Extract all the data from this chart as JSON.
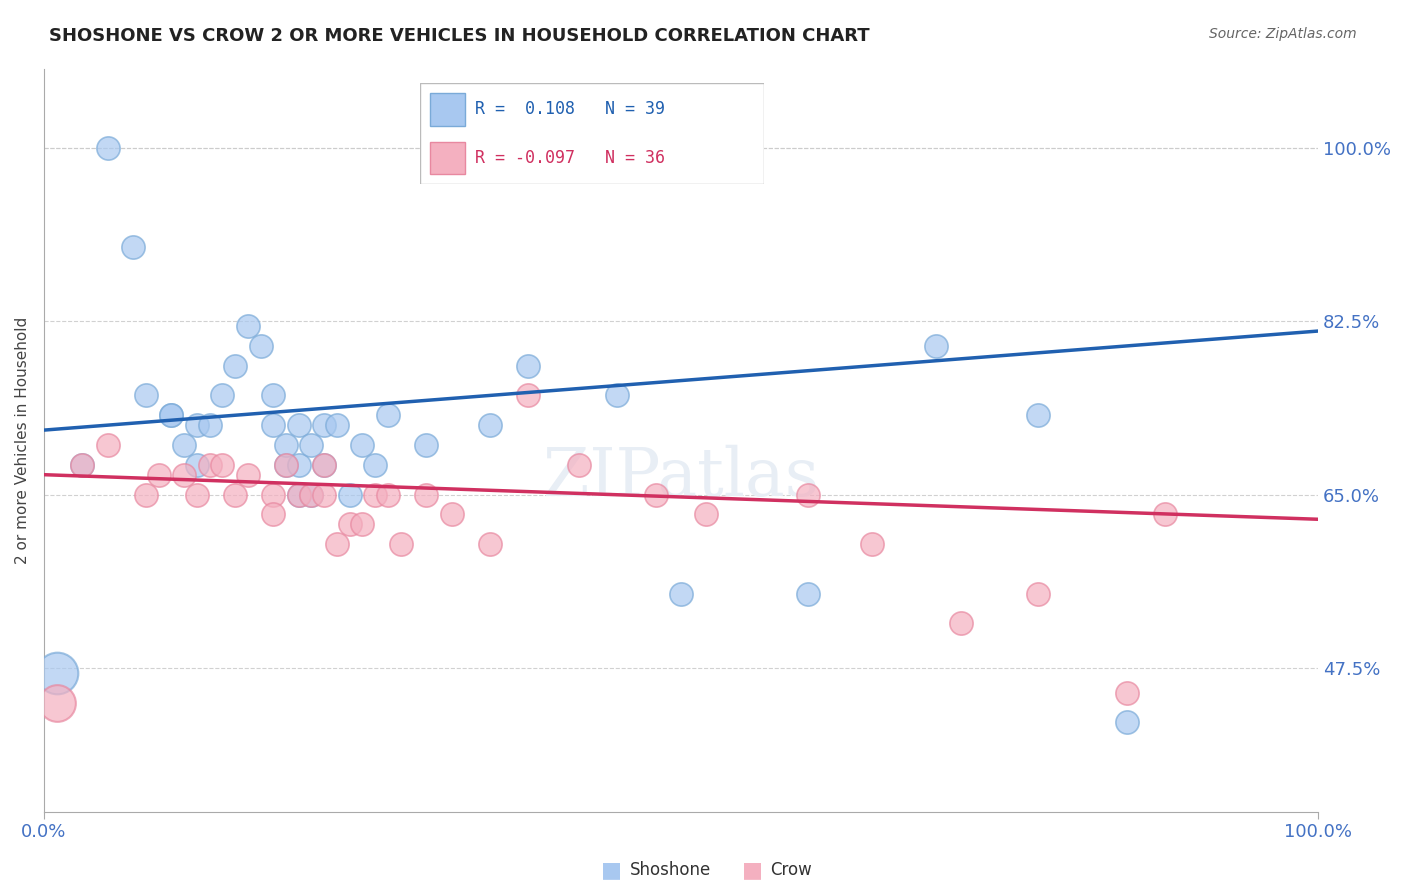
{
  "title": "SHOSHONE VS CROW 2 OR MORE VEHICLES IN HOUSEHOLD CORRELATION CHART",
  "source": "Source: ZipAtlas.com",
  "ylabel": "2 or more Vehicles in Household",
  "xlim": [
    0.0,
    100.0
  ],
  "ylim": [
    33.0,
    108.0
  ],
  "ytick_vals": [
    47.5,
    65.0,
    82.5,
    100.0
  ],
  "xtick_vals": [
    0.0,
    100.0
  ],
  "shoshone_color": "#A8C8F0",
  "shoshone_edge": "#7AAAD8",
  "crow_color": "#F4B0C0",
  "crow_edge": "#E888A0",
  "shoshone_line_color": "#2060B0",
  "crow_line_color": "#D03060",
  "R_shoshone": 0.108,
  "N_shoshone": 39,
  "R_crow": -0.097,
  "N_crow": 36,
  "shoshone_x": [
    3,
    5,
    7,
    8,
    10,
    10,
    11,
    12,
    12,
    13,
    14,
    15,
    16,
    17,
    18,
    18,
    19,
    19,
    20,
    20,
    20,
    21,
    21,
    22,
    22,
    23,
    24,
    25,
    26,
    27,
    30,
    35,
    38,
    45,
    50,
    60,
    70,
    78,
    85
  ],
  "shoshone_y": [
    68,
    100,
    90,
    75,
    73,
    73,
    70,
    68,
    72,
    72,
    75,
    78,
    82,
    80,
    75,
    72,
    68,
    70,
    65,
    68,
    72,
    65,
    70,
    68,
    72,
    72,
    65,
    70,
    68,
    73,
    70,
    72,
    78,
    75,
    55,
    55,
    80,
    73,
    42
  ],
  "crow_x": [
    3,
    5,
    8,
    9,
    11,
    12,
    13,
    14,
    15,
    16,
    18,
    18,
    19,
    20,
    21,
    22,
    22,
    23,
    24,
    25,
    26,
    27,
    28,
    30,
    32,
    35,
    38,
    42,
    48,
    52,
    60,
    65,
    72,
    78,
    85,
    88
  ],
  "crow_y": [
    68,
    70,
    65,
    67,
    67,
    65,
    68,
    68,
    65,
    67,
    65,
    63,
    68,
    65,
    65,
    68,
    65,
    60,
    62,
    62,
    65,
    65,
    60,
    65,
    63,
    60,
    75,
    68,
    65,
    63,
    65,
    60,
    52,
    55,
    45,
    63
  ],
  "shoshone_line_x": [
    0,
    100
  ],
  "shoshone_line_y": [
    71.5,
    81.5
  ],
  "crow_line_x": [
    0,
    100
  ],
  "crow_line_y": [
    67.0,
    62.5
  ]
}
